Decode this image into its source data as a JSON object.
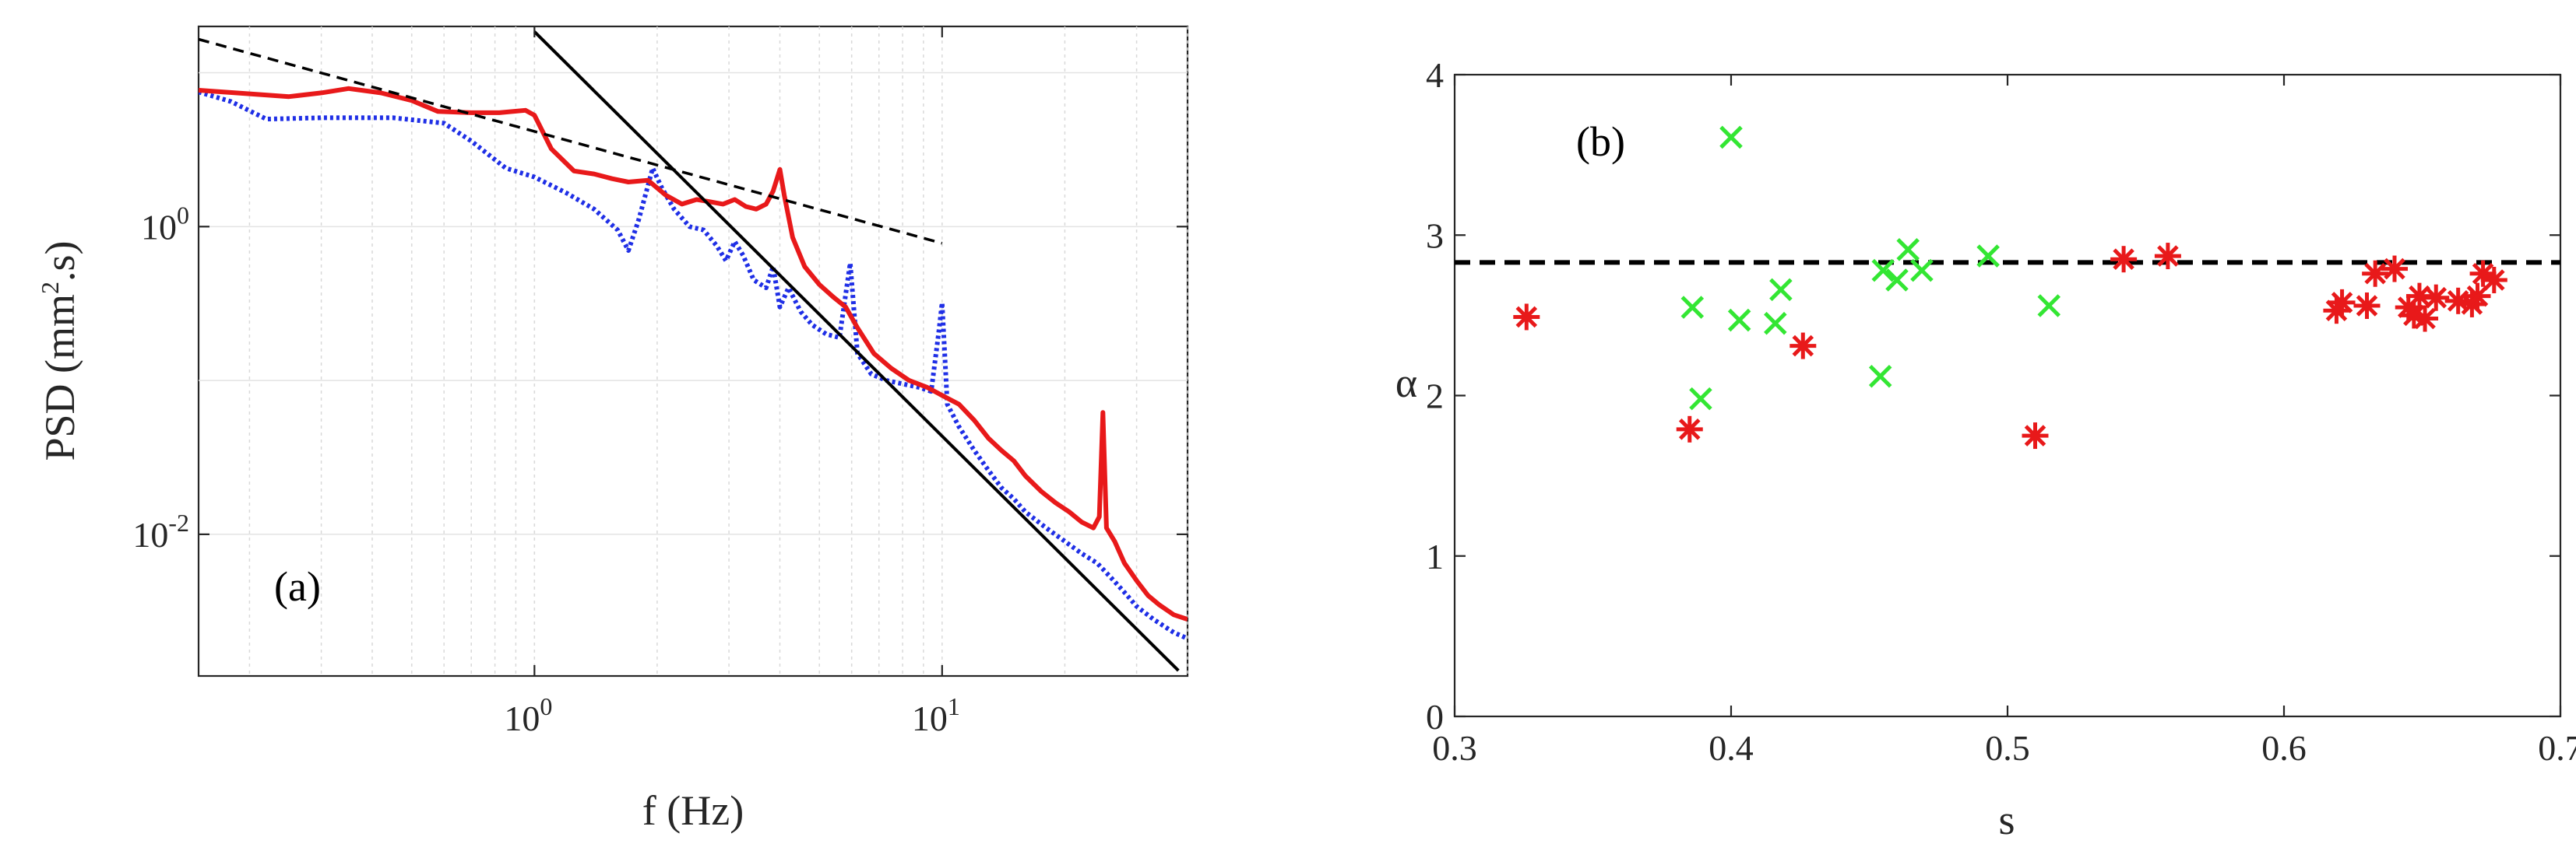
{
  "chart_data": [
    {
      "type": "line",
      "scale": "log-log",
      "panel_label": "(a)",
      "xlabel": "f (Hz)",
      "ylabel": "PSD (mm",
      "ylabel_exp": "2",
      "ylabel_tail": ".s)",
      "xlim": [
        0.15,
        40
      ],
      "ylim": [
        0.0012,
        20
      ],
      "x_ticks": [
        {
          "value": 1,
          "base": "10",
          "exp": "0"
        },
        {
          "value": 10,
          "base": "10",
          "exp": "1"
        }
      ],
      "y_ticks": [
        {
          "value": 0.01,
          "base": "10",
          "exp": "-2"
        },
        {
          "value": 1,
          "base": "10",
          "exp": "0"
        }
      ],
      "grid": true,
      "series": [
        {
          "name": "dotted-blue-spectrum",
          "color": "#1f2fe6",
          "style": "dotted",
          "points": [
            [
              0.15,
              7.5
            ],
            [
              0.18,
              6.5
            ],
            [
              0.22,
              5.0
            ],
            [
              0.3,
              5.1
            ],
            [
              0.45,
              5.1
            ],
            [
              0.6,
              4.7
            ],
            [
              0.7,
              3.6
            ],
            [
              0.85,
              2.4
            ],
            [
              1.0,
              2.1
            ],
            [
              1.2,
              1.65
            ],
            [
              1.4,
              1.3
            ],
            [
              1.6,
              0.95
            ],
            [
              1.7,
              0.7
            ],
            [
              1.8,
              1.1
            ],
            [
              1.95,
              2.4
            ],
            [
              2.05,
              1.8
            ],
            [
              2.2,
              1.3
            ],
            [
              2.4,
              1.0
            ],
            [
              2.6,
              0.95
            ],
            [
              2.8,
              0.75
            ],
            [
              2.95,
              0.6
            ],
            [
              3.1,
              0.8
            ],
            [
              3.25,
              0.65
            ],
            [
              3.45,
              0.45
            ],
            [
              3.7,
              0.4
            ],
            [
              3.85,
              0.55
            ],
            [
              4.0,
              0.3
            ],
            [
              4.2,
              0.4
            ],
            [
              4.5,
              0.28
            ],
            [
              4.8,
              0.23
            ],
            [
              5.2,
              0.2
            ],
            [
              5.6,
              0.19
            ],
            [
              5.95,
              0.58
            ],
            [
              6.2,
              0.15
            ],
            [
              6.7,
              0.11
            ],
            [
              7.3,
              0.1
            ],
            [
              8.0,
              0.095
            ],
            [
              8.8,
              0.09
            ],
            [
              9.4,
              0.085
            ],
            [
              9.8,
              0.2
            ],
            [
              10.0,
              0.32
            ],
            [
              10.3,
              0.07
            ],
            [
              11,
              0.05
            ],
            [
              12,
              0.035
            ],
            [
              13,
              0.026
            ],
            [
              14,
              0.02
            ],
            [
              15,
              0.017
            ],
            [
              16,
              0.014
            ],
            [
              18,
              0.011
            ],
            [
              20,
              0.009
            ],
            [
              22,
              0.0075
            ],
            [
              24,
              0.0065
            ],
            [
              26,
              0.0052
            ],
            [
              28,
              0.0042
            ],
            [
              30,
              0.0034
            ],
            [
              33,
              0.0028
            ],
            [
              37,
              0.0023
            ],
            [
              40,
              0.0021
            ]
          ]
        },
        {
          "name": "solid-red-spectrum",
          "color": "#e8191a",
          "style": "solid",
          "points": [
            [
              0.15,
              7.7
            ],
            [
              0.2,
              7.3
            ],
            [
              0.25,
              7.0
            ],
            [
              0.3,
              7.4
            ],
            [
              0.35,
              7.9
            ],
            [
              0.42,
              7.4
            ],
            [
              0.5,
              6.6
            ],
            [
              0.58,
              5.6
            ],
            [
              0.7,
              5.5
            ],
            [
              0.82,
              5.5
            ],
            [
              0.95,
              5.7
            ],
            [
              1.0,
              5.3
            ],
            [
              1.1,
              3.2
            ],
            [
              1.25,
              2.3
            ],
            [
              1.4,
              2.2
            ],
            [
              1.55,
              2.05
            ],
            [
              1.7,
              1.95
            ],
            [
              1.9,
              2.0
            ],
            [
              2.1,
              1.6
            ],
            [
              2.3,
              1.4
            ],
            [
              2.5,
              1.5
            ],
            [
              2.7,
              1.45
            ],
            [
              2.9,
              1.4
            ],
            [
              3.1,
              1.5
            ],
            [
              3.3,
              1.35
            ],
            [
              3.5,
              1.3
            ],
            [
              3.7,
              1.4
            ],
            [
              3.85,
              1.7
            ],
            [
              4.0,
              2.35
            ],
            [
              4.1,
              1.6
            ],
            [
              4.3,
              0.85
            ],
            [
              4.6,
              0.55
            ],
            [
              5.0,
              0.42
            ],
            [
              5.4,
              0.35
            ],
            [
              5.8,
              0.3
            ],
            [
              6.2,
              0.22
            ],
            [
              6.8,
              0.15
            ],
            [
              7.5,
              0.12
            ],
            [
              8.3,
              0.1
            ],
            [
              9.2,
              0.09
            ],
            [
              10,
              0.08
            ],
            [
              11,
              0.07
            ],
            [
              12,
              0.055
            ],
            [
              13,
              0.042
            ],
            [
              14,
              0.035
            ],
            [
              15,
              0.03
            ],
            [
              16,
              0.024
            ],
            [
              17.5,
              0.019
            ],
            [
              19,
              0.016
            ],
            [
              20.5,
              0.014
            ],
            [
              22,
              0.012
            ],
            [
              23.5,
              0.011
            ],
            [
              24.3,
              0.013
            ],
            [
              24.8,
              0.062
            ],
            [
              25.3,
              0.011
            ],
            [
              26.5,
              0.009
            ],
            [
              28,
              0.0065
            ],
            [
              30,
              0.005
            ],
            [
              32,
              0.004
            ],
            [
              34,
              0.0035
            ],
            [
              37,
              0.003
            ],
            [
              40,
              0.0028
            ]
          ]
        },
        {
          "name": "black-power-law-steep",
          "color": "#000000",
          "style": "solid",
          "points": [
            [
              1.0,
              18.5
            ],
            [
              38,
              0.0013
            ]
          ]
        },
        {
          "name": "black-power-law-shallow",
          "color": "#000000",
          "style": "dashed",
          "points": [
            [
              0.15,
              16.5
            ],
            [
              10,
              0.78
            ]
          ]
        }
      ]
    },
    {
      "type": "scatter",
      "panel_label": "(b)",
      "xlabel": "s",
      "ylabel": "α",
      "xlim": [
        0.3,
        0.7
      ],
      "ylim": [
        0,
        4
      ],
      "x_ticks": [
        "0.3",
        "0.4",
        "0.5",
        "0.6",
        "0.7"
      ],
      "y_ticks": [
        "0",
        "1",
        "2",
        "3",
        "4"
      ],
      "grid": false,
      "reference_line": {
        "y": 2.83,
        "style": "dashed",
        "color": "#000000"
      },
      "series": [
        {
          "name": "green-x",
          "color": "#33e633",
          "marker": "x",
          "points": [
            [
              0.386,
              2.55
            ],
            [
              0.389,
              1.98
            ],
            [
              0.4,
              3.61
            ],
            [
              0.403,
              2.47
            ],
            [
              0.416,
              2.45
            ],
            [
              0.418,
              2.66
            ],
            [
              0.454,
              2.12
            ],
            [
              0.455,
              2.78
            ],
            [
              0.46,
              2.72
            ],
            [
              0.464,
              2.91
            ],
            [
              0.469,
              2.78
            ],
            [
              0.493,
              2.87
            ],
            [
              0.515,
              2.56
            ]
          ]
        },
        {
          "name": "red-asterisk",
          "color": "#e8191a",
          "marker": "asterisk",
          "points": [
            [
              0.326,
              2.49
            ],
            [
              0.385,
              1.79
            ],
            [
              0.426,
              2.31
            ],
            [
              0.51,
              1.75
            ],
            [
              0.542,
              2.85
            ],
            [
              0.558,
              2.87
            ],
            [
              0.619,
              2.53
            ],
            [
              0.621,
              2.58
            ],
            [
              0.63,
              2.56
            ],
            [
              0.633,
              2.76
            ],
            [
              0.64,
              2.79
            ],
            [
              0.645,
              2.55
            ],
            [
              0.647,
              2.5
            ],
            [
              0.649,
              2.62
            ],
            [
              0.651,
              2.48
            ],
            [
              0.655,
              2.61
            ],
            [
              0.663,
              2.59
            ],
            [
              0.668,
              2.57
            ],
            [
              0.67,
              2.62
            ],
            [
              0.672,
              2.76
            ],
            [
              0.676,
              2.72
            ]
          ]
        }
      ]
    }
  ]
}
